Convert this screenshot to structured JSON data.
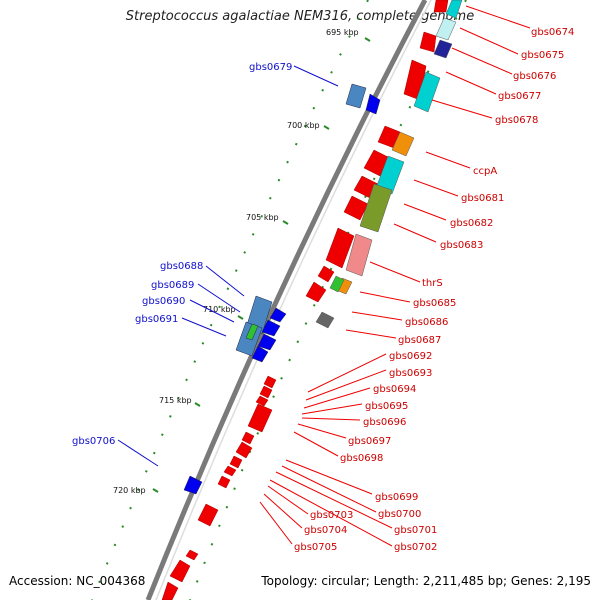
{
  "title": "Streptococcus agalactiae NEM316, complete genome",
  "footer": {
    "accession": "Accession: NC_004368",
    "summary": "Topology: circular; Length: 2,211,485 bp; Genes: 2,195"
  },
  "colors": {
    "backbone": "#7a7a7a",
    "left_label": "#1010cc",
    "right_label": "#cc0000",
    "tick_green": "#2a8a2a",
    "red_gene": "#ee0000",
    "blue_gene": "#0000ee",
    "steel_block": "#4a86c0",
    "cyan_block": "#00d0d0",
    "orange_block": "#f0900a",
    "olive_block": "#7a9a2a",
    "pink_block": "#f08a8a",
    "green_block": "#30c030",
    "gray_block": "#666666",
    "navy_block": "#222299"
  },
  "scale_ticks": [
    {
      "key": "t693",
      "label": "695 kbp"
    },
    {
      "key": "t700",
      "label": "700 kbp"
    },
    {
      "key": "t705",
      "label": "705 kbp"
    },
    {
      "key": "t710",
      "label": "710 kbp"
    },
    {
      "key": "t715",
      "label": "715 kbp"
    },
    {
      "key": "t720",
      "label": "720 kbp"
    }
  ],
  "left_genes": [
    "gbs0679",
    "gbs0688",
    "gbs0689",
    "gbs0690",
    "gbs0691",
    "gbs0706"
  ],
  "right_genes": [
    "gbs0674",
    "gbs0675",
    "gbs0676",
    "gbs0677",
    "gbs0678",
    "ccpA",
    "gbs0681",
    "gbs0682",
    "gbs0683",
    "thrS",
    "gbs0685",
    "gbs0686",
    "gbs0687",
    "gbs0692",
    "gbs0693",
    "gbs0694",
    "gbs0695",
    "gbs0696",
    "gbs0697",
    "gbs0698",
    "gbs0699",
    "gbs0700",
    "gbs0701",
    "gbs0702",
    "gbs0703",
    "gbs0704",
    "gbs0705"
  ]
}
